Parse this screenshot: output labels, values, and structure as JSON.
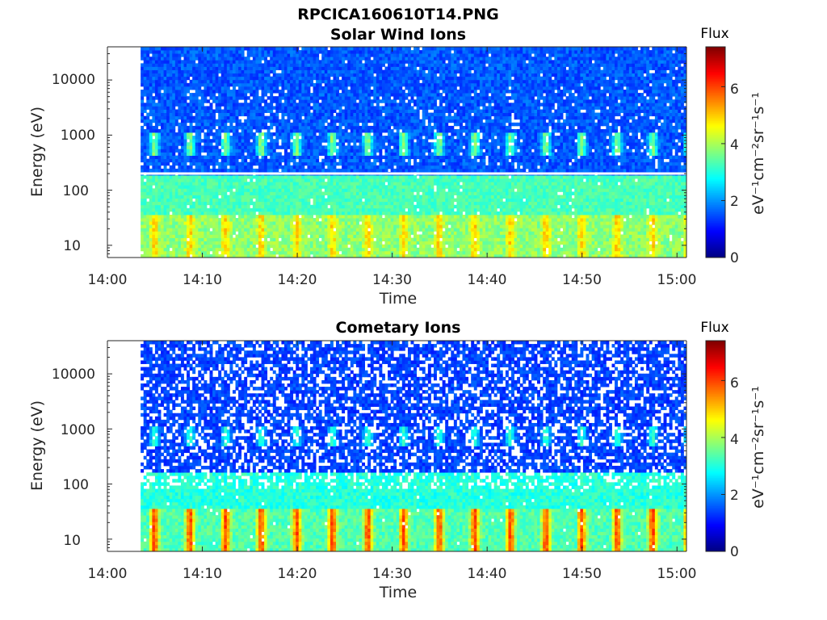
{
  "figure": {
    "title": "RPCICA160610T14.PNG"
  },
  "colors": {
    "colormap": "jet",
    "gap_line": "#ffffff",
    "axis": "#262626"
  },
  "chart_data": [
    {
      "type": "heatmap",
      "title": "Solar Wind Ions",
      "xlabel": "Time",
      "ylabel": "Energy (eV)",
      "x_ticks": [
        "14:00",
        "14:10",
        "14:20",
        "14:30",
        "14:40",
        "14:50",
        "15:00"
      ],
      "xlim": [
        "14:00",
        "15:01"
      ],
      "data_start": "14:03.5",
      "y_scale": "log",
      "ylim": [
        6,
        40000
      ],
      "y_ticks": [
        "10",
        "100",
        "1000",
        "10000"
      ],
      "y_tick_values": [
        10,
        100,
        1000,
        10000
      ],
      "colorbar": {
        "title": "Flux",
        "label": "eV⁻¹cm⁻²sr⁻¹s⁻¹",
        "range": [
          0,
          7.4
        ],
        "ticks": [
          "0",
          "2",
          "4",
          "6"
        ],
        "tick_values": [
          0,
          2,
          4,
          6
        ]
      },
      "gap_energy": 200,
      "periodic_band_energies": [
        700,
        18
      ],
      "grid": false
    },
    {
      "type": "heatmap",
      "title": "Cometary Ions",
      "xlabel": "Time",
      "ylabel": "Energy (eV)",
      "x_ticks": [
        "14:00",
        "14:10",
        "14:20",
        "14:30",
        "14:40",
        "14:50",
        "15:00"
      ],
      "xlim": [
        "14:00",
        "15:01"
      ],
      "data_start": "14:03.5",
      "y_scale": "log",
      "ylim": [
        6,
        40000
      ],
      "y_ticks": [
        "10",
        "100",
        "1000",
        "10000"
      ],
      "y_tick_values": [
        10,
        100,
        1000,
        10000
      ],
      "colorbar": {
        "title": "Flux",
        "label": "eV⁻¹cm⁻²sr⁻¹s⁻¹",
        "range": [
          0,
          7.4
        ],
        "ticks": [
          "0",
          "2",
          "4",
          "6"
        ],
        "tick_values": [
          0,
          2,
          4,
          6
        ]
      },
      "periodic_band_energies": [
        700,
        15
      ],
      "grid": false
    }
  ]
}
